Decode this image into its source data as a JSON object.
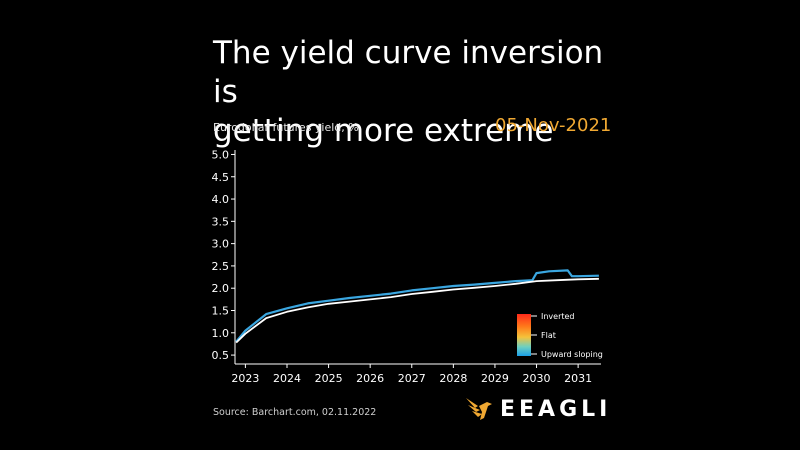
{
  "title_lines": [
    "The yield curve inversion is",
    "getting more extreme"
  ],
  "date_label": "05-Nov-2021",
  "source": "Source: Barchart.com, 02.11.2022",
  "logo": {
    "text": "EEAGLI",
    "icon": "eagle-icon",
    "color": "#f0a832"
  },
  "colors": {
    "accent": "#f0a832",
    "background": "#000000",
    "line_white": "#ffffff",
    "line_blue": "#3aa6e0"
  },
  "chart_data": {
    "type": "line",
    "title": "The yield curve inversion is getting more extreme",
    "ylabel": "Eurodollar futures yield, %",
    "xlabel": "",
    "xlim": [
      2022.75,
      2031.55
    ],
    "ylim": [
      0.3,
      5.1
    ],
    "grid": false,
    "yticks": [
      0.5,
      1.0,
      1.5,
      2.0,
      2.5,
      3.0,
      3.5,
      4.0,
      4.5,
      5.0
    ],
    "ytick_labels": [
      "0.5",
      "1.0",
      "1.5",
      "2.0",
      "2.5",
      "3.0",
      "3.5",
      "4.0",
      "4.5",
      "5.0"
    ],
    "xticks": [
      2023,
      2024,
      2025,
      2026,
      2027,
      2028,
      2029,
      2030,
      2031
    ],
    "xtick_labels": [
      "2023",
      "2024",
      "2025",
      "2026",
      "2027",
      "2028",
      "2029",
      "2030",
      "2031"
    ],
    "legend": {
      "placement": "bottom-right",
      "type": "color-gradient",
      "entries": [
        "Inverted",
        "Flat",
        "Upward sloping"
      ]
    },
    "series": [
      {
        "color": "#3aa6e0",
        "x": [
          2022.78,
          2023.0,
          2023.5,
          2024.0,
          2024.5,
          2025.0,
          2025.5,
          2026.0,
          2026.5,
          2027.0,
          2027.5,
          2028.0,
          2028.5,
          2029.0,
          2029.5,
          2029.9,
          2030.0,
          2030.3,
          2030.75,
          2030.85,
          2031.0,
          2031.5
        ],
        "y": [
          0.8,
          1.05,
          1.42,
          1.55,
          1.66,
          1.72,
          1.78,
          1.83,
          1.88,
          1.95,
          2.0,
          2.05,
          2.08,
          2.12,
          2.16,
          2.18,
          2.34,
          2.38,
          2.4,
          2.27,
          2.27,
          2.28
        ]
      },
      {
        "color": "#ffffff",
        "x": [
          2022.78,
          2023.0,
          2023.5,
          2024.0,
          2024.5,
          2025.0,
          2025.5,
          2026.0,
          2026.5,
          2027.0,
          2027.5,
          2028.0,
          2028.5,
          2029.0,
          2029.5,
          2030.0,
          2030.5,
          2031.0,
          2031.5
        ],
        "y": [
          0.78,
          0.98,
          1.33,
          1.47,
          1.57,
          1.65,
          1.7,
          1.75,
          1.8,
          1.87,
          1.92,
          1.97,
          2.01,
          2.05,
          2.1,
          2.16,
          2.18,
          2.2,
          2.21
        ]
      }
    ]
  }
}
